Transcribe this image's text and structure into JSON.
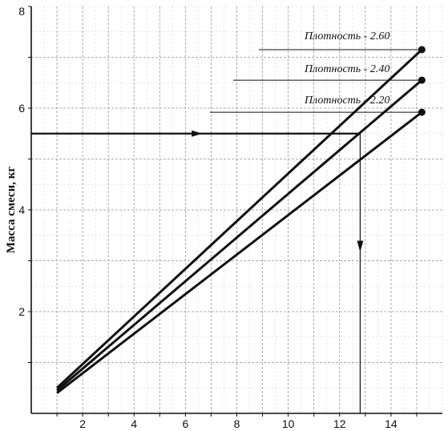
{
  "chart_data": {
    "type": "line",
    "title": "",
    "xlabel": "",
    "ylabel": "Масса смеси, кг",
    "xlim": [
      0,
      16
    ],
    "ylim": [
      0,
      8
    ],
    "xticks": [
      "2",
      "4",
      "6",
      "8",
      "10",
      "12",
      "14"
    ],
    "yticks": [
      "2",
      "4",
      "6",
      "8"
    ],
    "grid": true,
    "series": [
      {
        "name": "Плотность - 2.60",
        "x": [
          1,
          15.2
        ],
        "y": [
          0.5,
          7.15
        ]
      },
      {
        "name": "Плотность - 2.40",
        "x": [
          1,
          15.2
        ],
        "y": [
          0.45,
          6.55
        ]
      },
      {
        "name": "Плотность - 2.20",
        "x": [
          1,
          15.2
        ],
        "y": [
          0.4,
          5.92
        ]
      }
    ],
    "annotation": {
      "y_level": 5.5,
      "x_drop": 12.8,
      "x_start": 0
    }
  }
}
